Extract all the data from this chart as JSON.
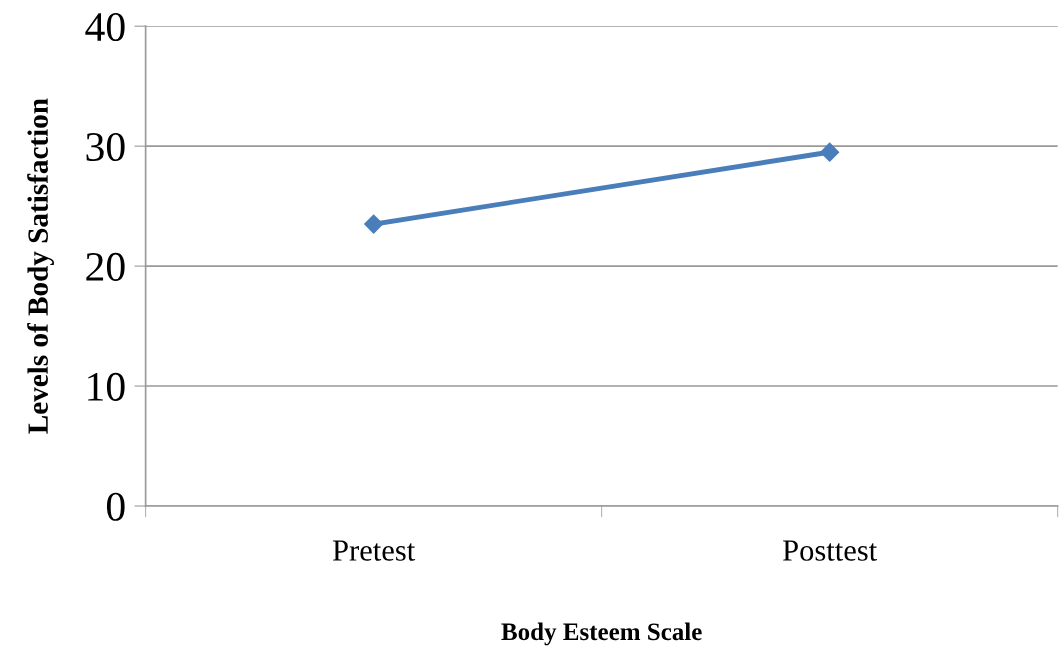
{
  "chart_data": {
    "type": "line",
    "xlabel": "Body Esteem Scale",
    "ylabel": "Levels of Body Satisfaction",
    "categories": [
      "Pretest",
      "Posttest"
    ],
    "series": [
      {
        "color": "#4a7ebb",
        "values": [
          23.5,
          29.5
        ]
      }
    ],
    "ylim": [
      0,
      40
    ],
    "yticks": [
      0,
      10,
      20,
      30,
      40
    ],
    "grid": "y",
    "marker": "diamond",
    "line_style": "solid",
    "legend": false
  }
}
